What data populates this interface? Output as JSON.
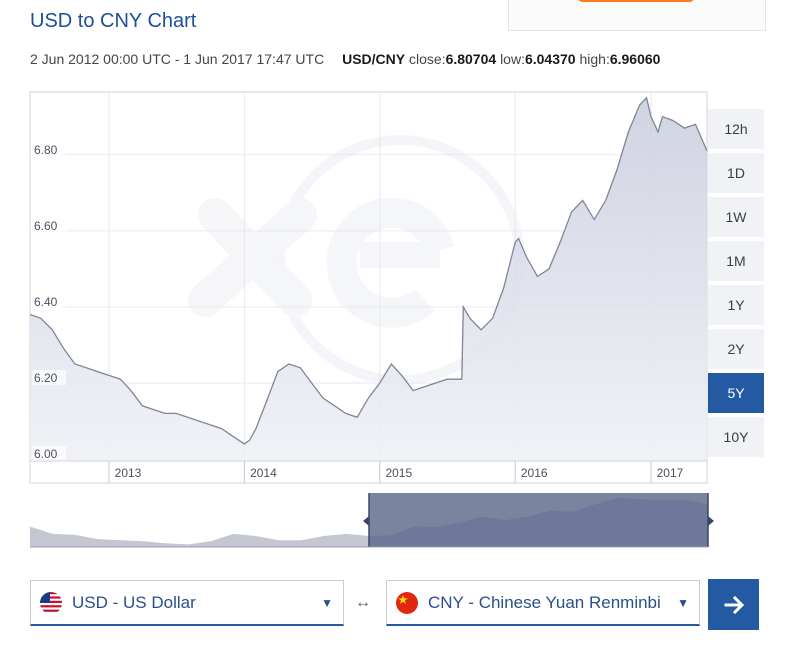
{
  "page": {
    "title": "USD to CNY Chart",
    "date_range": "2 Jun 2012 00:00 UTC - 1 Jun 2017 17:47 UTC",
    "pair": "USD/CNY",
    "close_label": "close:",
    "close_value": "6.80704",
    "low_label": "low:",
    "low_value": "6.04370",
    "high_label": "high:",
    "high_value": "6.96060"
  },
  "ranges": [
    {
      "label": "12h",
      "active": false
    },
    {
      "label": "1D",
      "active": false
    },
    {
      "label": "1W",
      "active": false
    },
    {
      "label": "1M",
      "active": false
    },
    {
      "label": "1Y",
      "active": false
    },
    {
      "label": "2Y",
      "active": false
    },
    {
      "label": "5Y",
      "active": true
    },
    {
      "label": "10Y",
      "active": false
    }
  ],
  "converter": {
    "from_label": "USD - US Dollar",
    "to_label": "CNY - Chinese Yuan Renminbi",
    "swap_symbol": "↔",
    "from_flag": "us-flag-icon",
    "to_flag": "china-flag-icon",
    "go_icon": "arrow-right-icon"
  },
  "colors": {
    "accent": "#235aa2",
    "title": "#1c4f9c",
    "line": "#8a90a4",
    "fill": "#e0e2ec",
    "brand_orange": "#ff7a1a"
  },
  "chart_data": {
    "type": "area",
    "x_start": "2012-06-02",
    "x_end": "2017-06-01",
    "xticks": [
      "2013",
      "2014",
      "2015",
      "2016",
      "2017"
    ],
    "xtick_dates": [
      "2013-01-01",
      "2014-01-01",
      "2015-01-01",
      "2016-01-01",
      "2017-01-01"
    ],
    "yticks": [
      "6.00",
      "6.20",
      "6.40",
      "6.60",
      "6.80"
    ],
    "ylim": [
      5.995,
      6.965
    ],
    "grid": true,
    "watermark": "xe",
    "series": [
      {
        "x": [
          "2012-06-02",
          "2012-07-01",
          "2012-08-01",
          "2012-09-01",
          "2012-10-01",
          "2012-11-01",
          "2012-12-01",
          "2013-01-01",
          "2013-02-01",
          "2013-03-01",
          "2013-04-01",
          "2013-05-01",
          "2013-06-01",
          "2013-07-01",
          "2013-08-01",
          "2013-09-01",
          "2013-10-01",
          "2013-11-01",
          "2013-12-01",
          "2014-01-01",
          "2014-01-15",
          "2014-02-01",
          "2014-03-01",
          "2014-04-01",
          "2014-05-01",
          "2014-06-01",
          "2014-07-01",
          "2014-08-01",
          "2014-09-01",
          "2014-10-01",
          "2014-11-01",
          "2014-12-01",
          "2015-01-01",
          "2015-02-01",
          "2015-03-01",
          "2015-04-01",
          "2015-05-01",
          "2015-06-01",
          "2015-07-01",
          "2015-08-10",
          "2015-08-14",
          "2015-09-01",
          "2015-10-01",
          "2015-11-01",
          "2015-12-01",
          "2016-01-01",
          "2016-01-10",
          "2016-02-01",
          "2016-03-01",
          "2016-04-01",
          "2016-05-01",
          "2016-06-01",
          "2016-07-01",
          "2016-08-01",
          "2016-09-01",
          "2016-10-01",
          "2016-11-01",
          "2016-12-01",
          "2016-12-20",
          "2017-01-01",
          "2017-01-20",
          "2017-02-01",
          "2017-03-01",
          "2017-04-01",
          "2017-05-01",
          "2017-06-01"
        ],
        "y": [
          6.38,
          6.37,
          6.34,
          6.29,
          6.25,
          6.24,
          6.23,
          6.22,
          6.21,
          6.18,
          6.14,
          6.13,
          6.12,
          6.12,
          6.11,
          6.1,
          6.09,
          6.08,
          6.06,
          6.04,
          6.05,
          6.08,
          6.15,
          6.23,
          6.25,
          6.24,
          6.2,
          6.16,
          6.14,
          6.12,
          6.11,
          6.16,
          6.2,
          6.25,
          6.22,
          6.18,
          6.19,
          6.2,
          6.21,
          6.21,
          6.4,
          6.37,
          6.34,
          6.37,
          6.45,
          6.57,
          6.58,
          6.53,
          6.48,
          6.5,
          6.57,
          6.65,
          6.68,
          6.63,
          6.68,
          6.76,
          6.86,
          6.93,
          6.95,
          6.9,
          6.86,
          6.9,
          6.89,
          6.87,
          6.88,
          6.81
        ]
      }
    ]
  },
  "navigator": {
    "y": [
      6.38,
      6.24,
      6.22,
      6.14,
      6.12,
      6.1,
      6.06,
      6.04,
      6.1,
      6.24,
      6.2,
      6.12,
      6.12,
      6.2,
      6.24,
      6.2,
      6.21,
      6.38,
      6.37,
      6.45,
      6.57,
      6.5,
      6.57,
      6.68,
      6.66,
      6.8,
      6.93,
      6.9,
      6.88,
      6.89,
      6.81
    ],
    "window_start_index": 15
  }
}
